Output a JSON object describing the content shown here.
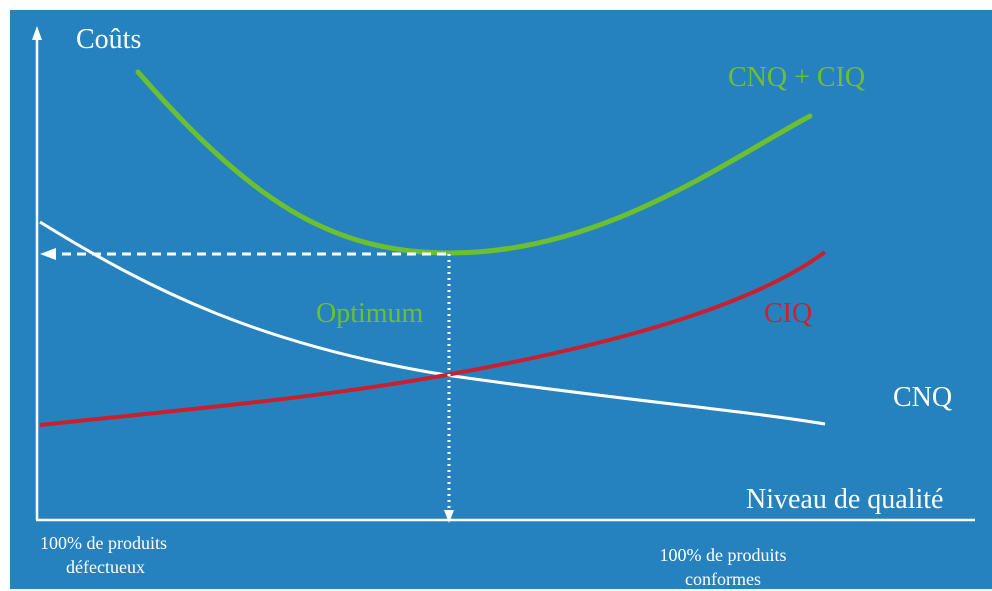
{
  "colors": {
    "background": "#2582be",
    "axis": "#ffffff",
    "cnq_curve": "#ffffff",
    "ciq_curve": "#c8202e",
    "total_curve": "#6cc02e",
    "optimum_text": "#6cc02e",
    "ciq_text": "#d0202e",
    "white_text": "#ffffff"
  },
  "labels": {
    "y_axis": "Coûts",
    "x_axis": "Niveau de qualité",
    "total": "CNQ + CIQ",
    "ciq": "CIQ",
    "cnq": "CNQ",
    "optimum": "Optimum",
    "left_line1": "100% de produits",
    "left_line2": "défectueux",
    "right_line1": "100% de produits",
    "right_line2": "conformes"
  }
}
